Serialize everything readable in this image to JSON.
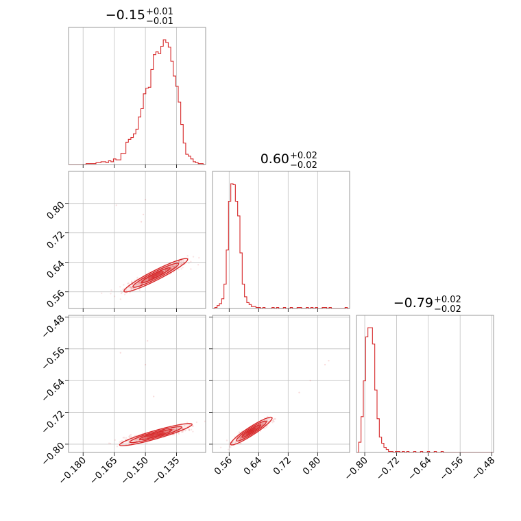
{
  "chart_data": {
    "type": "corner",
    "parameters": [
      {
        "title_value": "−0.15",
        "title_plus": "+0.01",
        "title_minus": "−0.01",
        "range": [
          -0.187,
          -0.121
        ],
        "ticks": [
          -0.18,
          -0.165,
          -0.15,
          -0.135
        ],
        "tick_labels": [
          "−0.180",
          "−0.165",
          "−0.150",
          "−0.135"
        ]
      },
      {
        "title_value": "0.60",
        "title_plus": "+0.02",
        "title_minus": "−0.02",
        "range": [
          0.5148,
          0.8868
        ],
        "ticks": [
          0.56,
          0.64,
          0.72,
          0.8
        ],
        "tick_labels": [
          "0.56",
          "0.64",
          "0.72",
          "0.80"
        ]
      },
      {
        "title_value": "−0.79",
        "title_plus": "+0.02",
        "title_minus": "−0.02",
        "range": [
          -0.8208,
          -0.4758
        ],
        "ticks": [
          -0.8,
          -0.72,
          -0.64,
          -0.56,
          -0.48
        ],
        "tick_labels": [
          "−0.80",
          "−0.72",
          "−0.64",
          "−0.56",
          "−0.48"
        ]
      }
    ],
    "color": "#d62728",
    "grid": true,
    "histograms": [
      {
        "bin_start": -0.187,
        "bin_width": 0.0012,
        "counts": [
          0,
          0,
          0,
          0,
          0,
          0,
          0,
          1,
          1,
          1,
          1,
          2,
          2,
          3,
          3,
          2,
          4,
          3,
          6,
          5,
          5,
          12,
          12,
          24,
          27,
          29,
          33,
          38,
          51,
          60,
          76,
          82,
          83,
          102,
          118,
          121,
          119,
          127,
          134,
          131,
          126,
          111,
          95,
          84,
          67,
          43,
          23,
          11,
          9,
          6,
          3,
          2,
          1,
          1,
          0
        ]
      },
      {
        "bin_start": 0.5148,
        "bin_width": 0.0062,
        "counts": [
          0,
          1,
          3,
          5,
          10,
          25,
          60,
          110,
          128,
          127,
          110,
          95,
          57,
          25,
          12,
          6,
          4,
          2,
          2,
          1,
          1,
          0,
          1,
          0,
          0,
          0,
          1,
          0,
          1,
          0,
          0,
          1,
          0,
          0,
          1,
          0,
          0,
          1,
          1,
          0,
          0,
          1,
          0,
          1,
          0,
          1,
          0,
          0,
          1,
          1,
          0,
          1,
          0,
          0,
          0,
          0,
          0,
          0,
          1,
          0
        ]
      },
      {
        "bin_start": -0.8208,
        "bin_width": 0.00575,
        "counts": [
          0,
          10,
          35,
          70,
          113,
          122,
          122,
          106,
          61,
          33,
          15,
          9,
          5,
          3,
          1,
          1,
          0,
          1,
          1,
          0,
          1,
          0,
          1,
          0,
          0,
          1,
          0,
          0,
          1,
          0,
          0,
          1,
          0,
          0,
          1,
          0,
          0,
          1,
          0,
          0,
          0,
          0,
          0,
          0,
          0,
          0,
          0,
          0,
          0,
          0,
          0,
          0,
          0,
          0,
          0,
          0,
          0,
          0,
          0,
          0
        ]
      }
    ],
    "relations": {
      "p1_vs_p0": {
        "slope": 2.42,
        "at_p0": -0.145,
        "value": 0.605
      },
      "p2_vs_p0": {
        "slope": 1.12,
        "at_p0": -0.145,
        "value": -0.776
      },
      "p2_vs_p1": {
        "slope": 0.52,
        "at_p1": 0.62,
        "value": -0.767
      }
    }
  }
}
